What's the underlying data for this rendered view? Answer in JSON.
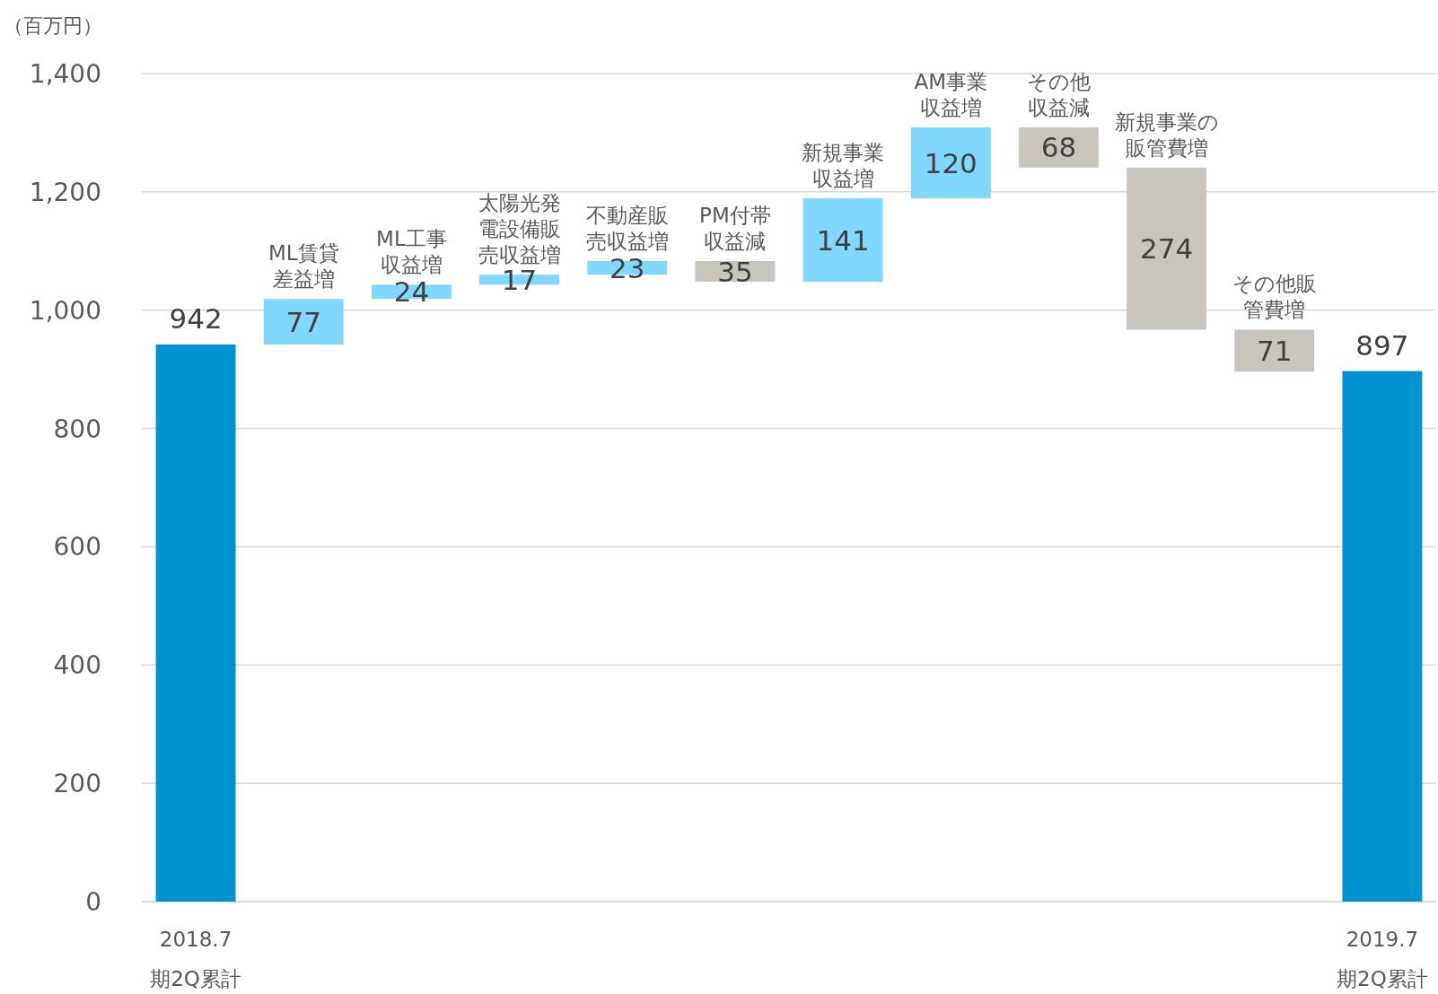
{
  "chart_data": {
    "type": "bar",
    "ylabel": "（百万円）",
    "categories": [
      "2018.7期2Q累計",
      "ML賃貸差益増",
      "ML工事収益増",
      "太陽光発電設備販売収益増",
      "不動産販売収益増",
      "PM付帯収益減",
      "新規事業収益増",
      "AM事業収益増",
      "その他収益減",
      "新規事業の販管費増",
      "その他販管費増",
      "2019.7期2Q累計"
    ],
    "values": [
      942,
      77,
      24,
      17,
      23,
      35,
      141,
      120,
      68,
      274,
      71,
      897
    ],
    "base": [
      0,
      942,
      1019,
      1043,
      1060,
      1048,
      1048,
      1189,
      1241,
      967,
      896,
      0
    ],
    "colors": [
      "#0093d0",
      "#80d8ff",
      "#80d8ff",
      "#80d8ff",
      "#80d8ff",
      "#c9c5bc",
      "#80d8ff",
      "#80d8ff",
      "#c9c5bc",
      "#c9c5bc",
      "#c9c5bc",
      "#0093d0"
    ],
    "ylim": [
      0,
      1400
    ],
    "yticks": [
      0,
      200,
      400,
      600,
      800,
      {
        "value": 1000,
        "label": "1,000"
      },
      {
        "value": 1200,
        "label": "1,200"
      },
      {
        "value": 1400,
        "label": "1,400"
      }
    ],
    "grid": "y",
    "data_labels": true
  }
}
